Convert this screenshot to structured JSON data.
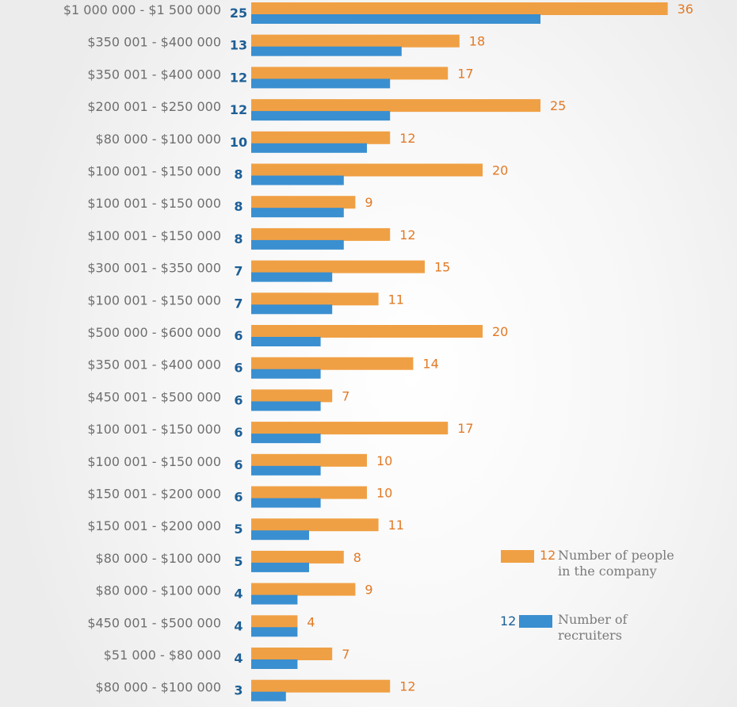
{
  "chart_data": {
    "type": "bar",
    "orientation": "horizontal",
    "categories": [
      "$1 000 000 - $1 500 000",
      "$350 001 - $400 000",
      "$350 001 - $400 000",
      "$200 001 - $250 000",
      "$80 000 - $100 000",
      "$100 001 - $150 000",
      "$100 001 - $150 000",
      "$100 001 - $150 000",
      "$300 001 - $350 000",
      "$100 001 - $150 000",
      "$500 000 - $600 000",
      "$350 001 - $400 000",
      "$450 001 - $500 000",
      "$100 001 - $150 000",
      "$100 001 - $150 000",
      "$150 001 - $200 000",
      "$150 001 - $200 000",
      "$80 000 - $100 000",
      "$80 000 - $100 000",
      "$450 001 - $500 000",
      "$51 000 - $80 000",
      "$80 000 - $100 000"
    ],
    "series": [
      {
        "name": "Number of people in the company",
        "color": "#f0a044",
        "label_color": "#e27a26",
        "values": [
          36,
          18,
          17,
          25,
          12,
          20,
          9,
          12,
          15,
          11,
          20,
          14,
          7,
          17,
          10,
          10,
          11,
          8,
          9,
          4,
          7,
          12
        ]
      },
      {
        "name": "Number of recruiters",
        "color": "#3a8fd0",
        "label_color": "#1d5f96",
        "values": [
          25,
          13,
          12,
          12,
          10,
          8,
          8,
          8,
          7,
          7,
          6,
          6,
          6,
          6,
          6,
          6,
          5,
          5,
          4,
          4,
          4,
          3
        ]
      }
    ],
    "xlim": [
      0,
      36
    ]
  },
  "legend": {
    "people": {
      "sample_value": "12",
      "line1": "Number of people",
      "line2": "in the company"
    },
    "recruiters": {
      "sample_value": "12",
      "line1": "Number of",
      "line2": "recruiters"
    }
  }
}
